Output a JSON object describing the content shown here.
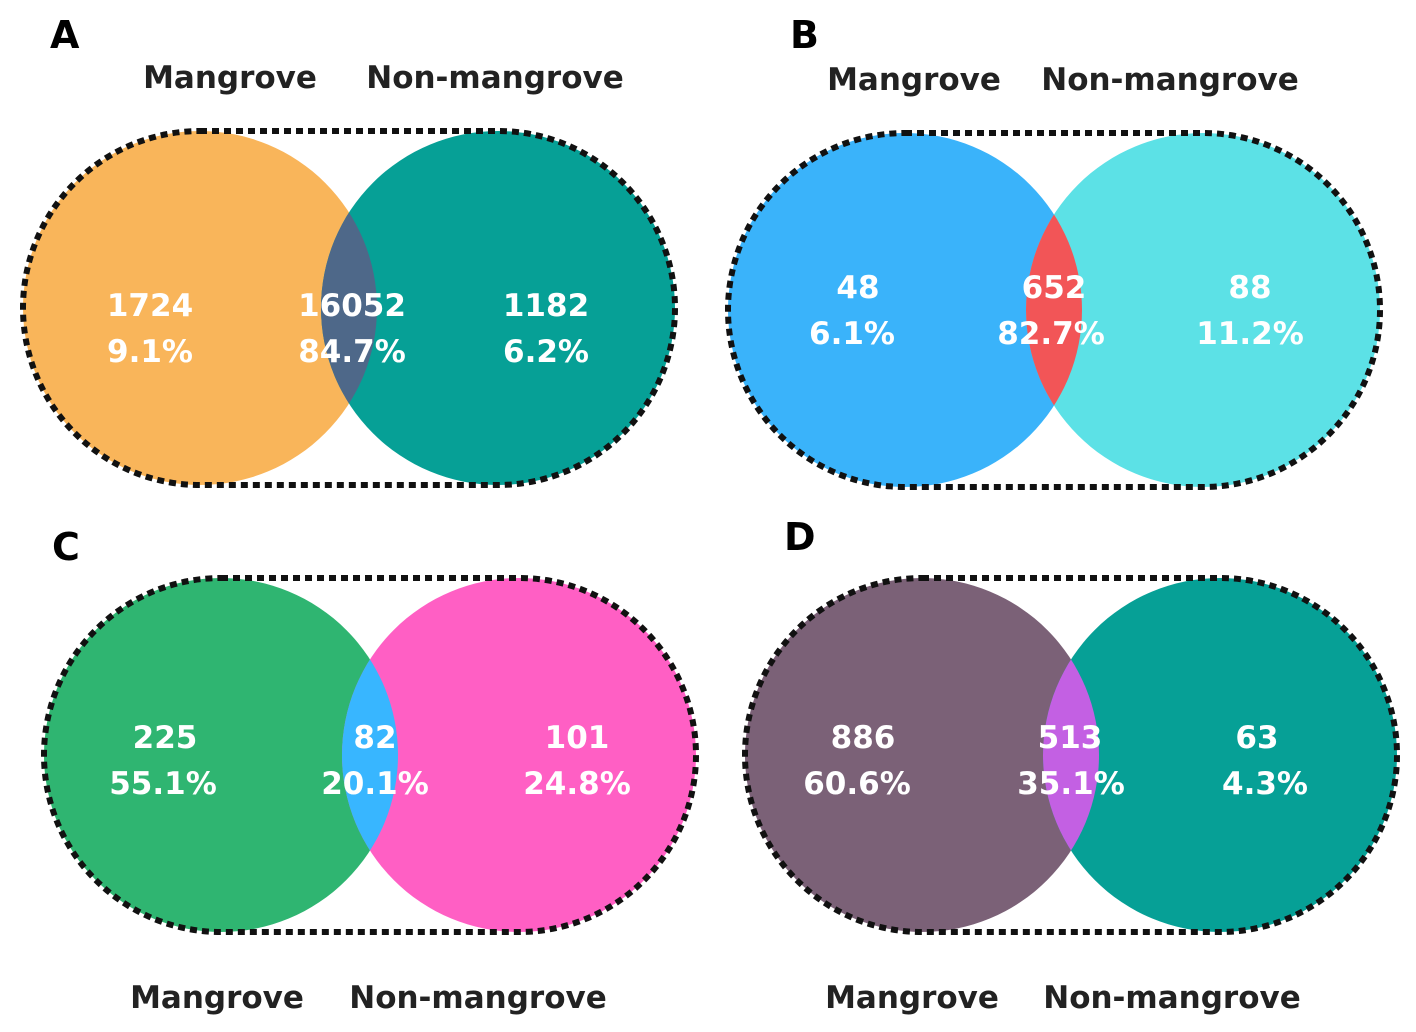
{
  "panels": [
    {
      "letter": "A",
      "labels": {
        "left": "Mangrove",
        "right": "Non-mangrove"
      },
      "colors": {
        "left": "#F9B55A",
        "right": "#06A096",
        "overlap": "#4E6889"
      },
      "left": {
        "count": "1724",
        "percent": "9.1%"
      },
      "overlap": {
        "count": "16052",
        "percent": "84.7%"
      },
      "right": {
        "count": "1182",
        "percent": "6.2%"
      }
    },
    {
      "letter": "B",
      "labels": {
        "left": "Mangrove",
        "right": "Non-mangrove"
      },
      "colors": {
        "left": "#3AB3FA",
        "right": "#5CE1E6",
        "overlap": "#F25557"
      },
      "left": {
        "count": "48",
        "percent": "6.1%"
      },
      "overlap": {
        "count": "652",
        "percent": "82.7%"
      },
      "right": {
        "count": "88",
        "percent": "11.2%"
      }
    },
    {
      "letter": "C",
      "labels": {
        "left": "Mangrove",
        "right": "Non-mangrove"
      },
      "colors": {
        "left": "#2FB571",
        "right": "#FF5FC4",
        "overlap": "#38B6FF"
      },
      "left": {
        "count": "225",
        "percent": "55.1%"
      },
      "overlap": {
        "count": "82",
        "percent": "20.1%"
      },
      "right": {
        "count": "101",
        "percent": "24.8%"
      }
    },
    {
      "letter": "D",
      "labels": {
        "left": "Mangrove",
        "right": "Non-mangrove"
      },
      "colors": {
        "left": "#7B6177",
        "right": "#06A096",
        "overlap": "#C360E3"
      },
      "left": {
        "count": "886",
        "percent": "60.6%"
      },
      "overlap": {
        "count": "513",
        "percent": "35.1%"
      },
      "right": {
        "count": "63",
        "percent": "4.3%"
      }
    }
  ]
}
